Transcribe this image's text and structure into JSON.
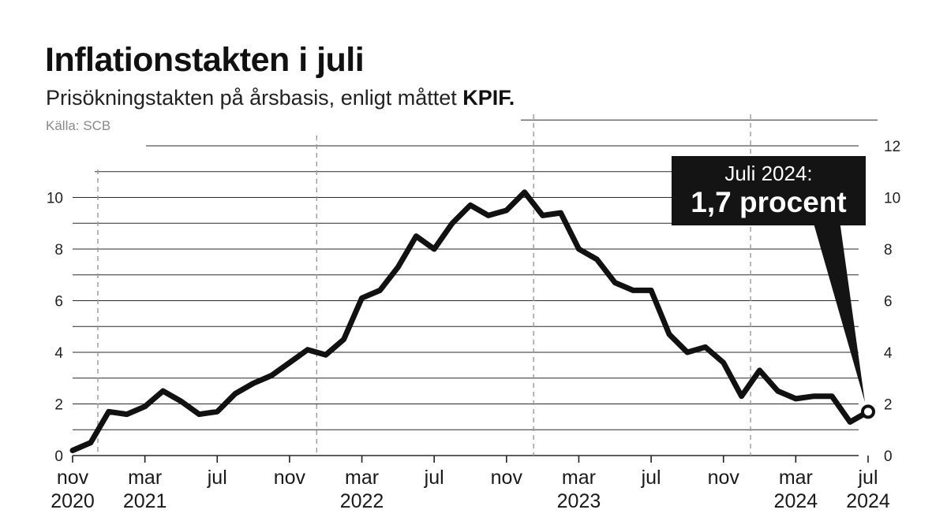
{
  "title": "Inflationstakten i juli",
  "subtitle_text": "Prisökningstakten på årsbasis, enligt måttet",
  "subtitle_bold": "KPIF.",
  "source": "Källa: SCB",
  "callout": {
    "line1": "Juli 2024:",
    "line2": "1,7 procent"
  },
  "colors": {
    "line": "#111111",
    "grid": "#2a2a2a",
    "dashed": "#9a9a9a",
    "callout_bg": "#141414"
  },
  "chart_data": {
    "type": "line",
    "ylim": [
      0,
      12
    ],
    "yticks": [
      0,
      2,
      4,
      6,
      8,
      10,
      12
    ],
    "grid": "horizontal every 1 unit, dashed vertical year separators",
    "xticks": [
      {
        "month": "nov",
        "year": "2020",
        "idx": 0
      },
      {
        "month": "mar",
        "year": "2021",
        "idx": 4
      },
      {
        "month": "jul",
        "year": "",
        "idx": 8
      },
      {
        "month": "nov",
        "year": "",
        "idx": 12
      },
      {
        "month": "mar",
        "year": "2022",
        "idx": 16
      },
      {
        "month": "jul",
        "year": "",
        "idx": 20
      },
      {
        "month": "nov",
        "year": "",
        "idx": 24
      },
      {
        "month": "mar",
        "year": "2023",
        "idx": 28
      },
      {
        "month": "jul",
        "year": "",
        "idx": 32
      },
      {
        "month": "nov",
        "year": "",
        "idx": 36
      },
      {
        "month": "mar",
        "year": "2024",
        "idx": 40
      },
      {
        "month": "jul",
        "year": "2024",
        "idx": 44
      }
    ],
    "year_separators_idx": [
      13.5,
      25.5,
      37.5
    ],
    "x": [
      "2020-11",
      "2020-12",
      "2021-01",
      "2021-02",
      "2021-03",
      "2021-04",
      "2021-05",
      "2021-06",
      "2021-07",
      "2021-08",
      "2021-09",
      "2021-10",
      "2021-11",
      "2021-12",
      "2022-01",
      "2022-02",
      "2022-03",
      "2022-04",
      "2022-05",
      "2022-06",
      "2022-07",
      "2022-08",
      "2022-09",
      "2022-10",
      "2022-11",
      "2022-12",
      "2023-01",
      "2023-02",
      "2023-03",
      "2023-04",
      "2023-05",
      "2023-06",
      "2023-07",
      "2023-08",
      "2023-09",
      "2023-10",
      "2023-11",
      "2023-12",
      "2024-01",
      "2024-02",
      "2024-03",
      "2024-04",
      "2024-05",
      "2024-06",
      "2024-07"
    ],
    "values": [
      0.2,
      0.5,
      1.7,
      1.6,
      1.9,
      2.5,
      2.1,
      1.6,
      1.7,
      2.4,
      2.8,
      3.1,
      3.6,
      4.1,
      3.9,
      4.5,
      6.1,
      6.4,
      7.3,
      8.5,
      8.0,
      9.0,
      9.7,
      9.3,
      9.5,
      10.2,
      9.3,
      9.4,
      8.0,
      7.6,
      6.7,
      6.4,
      6.4,
      4.7,
      4.0,
      4.2,
      3.6,
      2.3,
      3.3,
      2.5,
      2.2,
      2.3,
      2.3,
      1.3,
      1.7
    ]
  }
}
